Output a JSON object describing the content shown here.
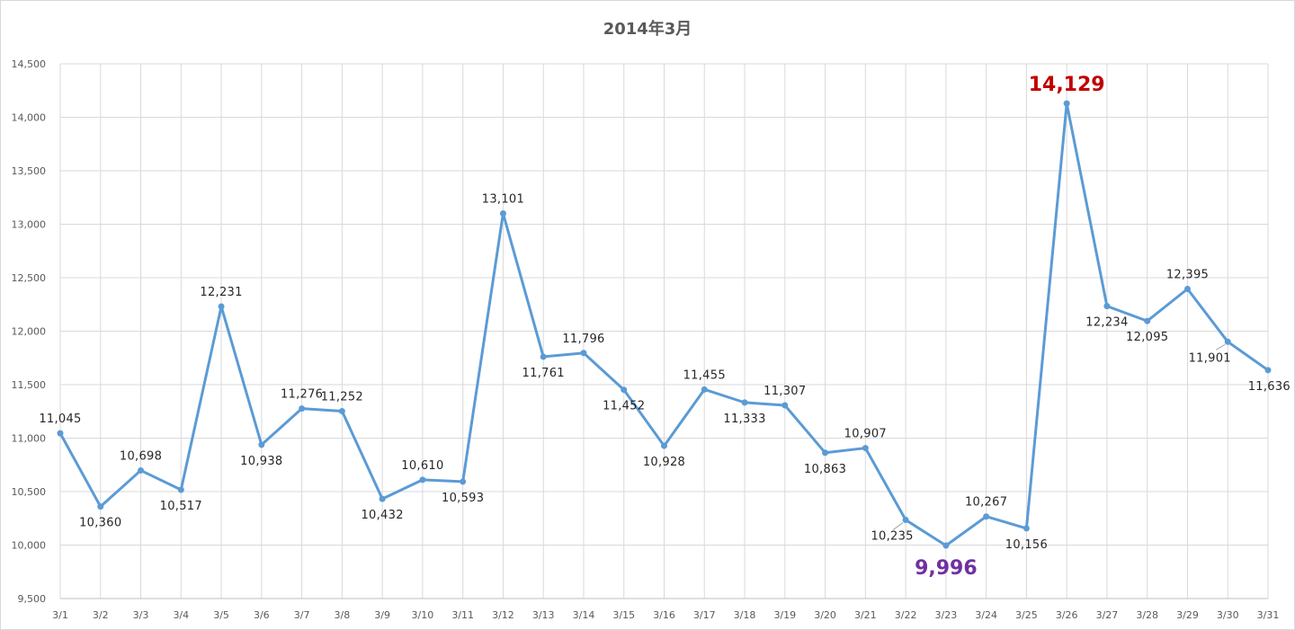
{
  "chart_data": {
    "type": "line",
    "title": "2014年3月",
    "xlabel": "",
    "ylabel": "",
    "ylim": [
      9500,
      14500
    ],
    "ytick_step": 500,
    "grid": true,
    "legend": "none",
    "line_color": "#5b9bd5",
    "max_label_color": "#c00000",
    "min_label_color": "#7030a0",
    "categories": [
      "3/1",
      "3/2",
      "3/3",
      "3/4",
      "3/5",
      "3/6",
      "3/7",
      "3/8",
      "3/9",
      "3/10",
      "3/11",
      "3/12",
      "3/13",
      "3/14",
      "3/15",
      "3/16",
      "3/17",
      "3/18",
      "3/19",
      "3/20",
      "3/21",
      "3/22",
      "3/23",
      "3/24",
      "3/25",
      "3/26",
      "3/27",
      "3/28",
      "3/29",
      "3/30",
      "3/31"
    ],
    "series": [
      {
        "values": [
          11045,
          10360,
          10698,
          10517,
          12231,
          10938,
          11276,
          11252,
          10432,
          10610,
          10593,
          13101,
          11761,
          11796,
          11452,
          10928,
          11455,
          11333,
          11307,
          10863,
          10907,
          10235,
          9996,
          10267,
          10156,
          14129,
          12234,
          12095,
          12395,
          11901,
          11636
        ]
      }
    ],
    "data_labels": [
      "11,045",
      "10,360",
      "10,698",
      "10,517",
      "12,231",
      "10,938",
      "11,276",
      "11,252",
      "10,432",
      "10,610",
      "10,593",
      "13,101",
      "11,761",
      "11,796",
      "11,452",
      "10,928",
      "11,455",
      "11,333",
      "11,307",
      "10,863",
      "10,907",
      "10,235",
      "9,996",
      "10,267",
      "10,156",
      "14,129",
      "12,234",
      "12,095",
      "12,395",
      "11,901",
      "11,636"
    ],
    "data_label_positions": [
      "above",
      "below",
      "above",
      "below",
      "above",
      "below",
      "above",
      "above",
      "below",
      "above",
      "below",
      "above",
      "below",
      "above",
      "below",
      "below",
      "above",
      "below",
      "above",
      "below",
      "above",
      "below",
      "below",
      "above",
      "below",
      "above",
      "below",
      "below",
      "above",
      "below",
      "below"
    ],
    "highlight": {
      "max_index": 25,
      "min_index": 22
    },
    "yticks": [
      "9,500",
      "10,000",
      "10,500",
      "11,000",
      "11,500",
      "12,000",
      "12,500",
      "13,000",
      "13,500",
      "14,000",
      "14,500"
    ]
  }
}
